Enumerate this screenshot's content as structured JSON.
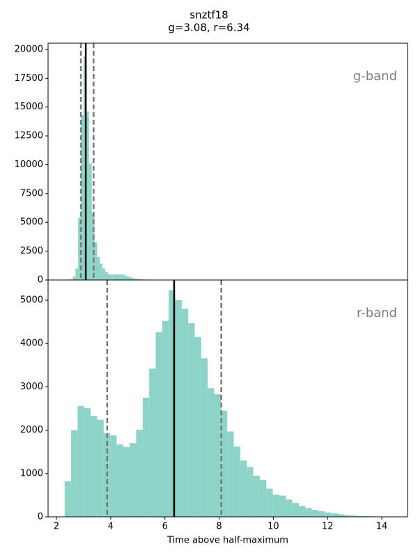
{
  "figure": {
    "title": "snztf18",
    "subtitle": "g=3.08, r=6.34"
  },
  "chart_data": [
    {
      "type": "histogram",
      "annotation": "g-band",
      "color": "#8dd3c7",
      "bins": [
        2.5,
        2.6,
        2.7,
        2.8,
        2.9,
        3.0,
        3.1,
        3.2,
        3.3,
        3.4,
        3.5,
        3.6,
        3.7,
        3.8,
        3.9,
        4.0,
        4.1,
        4.2,
        4.3,
        4.4,
        4.5,
        4.6,
        4.7,
        4.8,
        4.9,
        5.0,
        5.1,
        5.2,
        5.3,
        5.4,
        5.5,
        5.6
      ],
      "values": [
        50,
        300,
        1000,
        5400,
        14300,
        19400,
        14600,
        10100,
        5800,
        3300,
        2000,
        1400,
        1000,
        700,
        500,
        450,
        480,
        500,
        500,
        470,
        400,
        300,
        220,
        150,
        100,
        80,
        60,
        40,
        30,
        20,
        10
      ],
      "median": 3.08,
      "percentiles": [
        2.9,
        3.37
      ],
      "xlim": [
        1.69,
        14.95
      ],
      "ylim": [
        0,
        20540
      ],
      "yticks": [
        0,
        2500,
        5000,
        7500,
        10000,
        12500,
        15000,
        17500,
        20000
      ]
    },
    {
      "type": "histogram",
      "annotation": "r-band",
      "color": "#8dd3c7",
      "xlabel": "Time above half-maximum",
      "bins": [
        2.3,
        2.54,
        2.78,
        3.02,
        3.26,
        3.5,
        3.74,
        3.98,
        4.22,
        4.46,
        4.7,
        4.94,
        5.18,
        5.42,
        5.66,
        5.9,
        6.14,
        6.38,
        6.62,
        6.86,
        7.1,
        7.34,
        7.58,
        7.82,
        8.06,
        8.3,
        8.54,
        8.78,
        9.02,
        9.26,
        9.5,
        9.74,
        9.98,
        10.22,
        10.46,
        10.7,
        10.94,
        11.18,
        11.42,
        11.66,
        11.9,
        12.14,
        12.38,
        12.62,
        12.86,
        13.1,
        13.34,
        13.58,
        13.82,
        14.06,
        14.3,
        14.54
      ],
      "values": [
        820,
        2000,
        2560,
        2510,
        2330,
        2240,
        1930,
        1880,
        1670,
        1610,
        1700,
        2010,
        2750,
        3420,
        4260,
        4520,
        5230,
        5000,
        4800,
        4470,
        4150,
        3660,
        2970,
        2830,
        2450,
        1970,
        1620,
        1300,
        1150,
        950,
        850,
        650,
        510,
        490,
        400,
        320,
        250,
        200,
        160,
        130,
        100,
        80,
        60,
        40,
        30,
        20,
        15,
        10,
        8,
        5,
        3
      ],
      "median": 6.34,
      "percentiles": [
        3.87,
        8.08
      ],
      "xlim": [
        1.69,
        14.95
      ],
      "ylim": [
        0,
        5466
      ],
      "xticks": [
        2,
        4,
        6,
        8,
        10,
        12,
        14
      ],
      "yticks": [
        0,
        1000,
        2000,
        3000,
        4000,
        5000
      ]
    }
  ]
}
